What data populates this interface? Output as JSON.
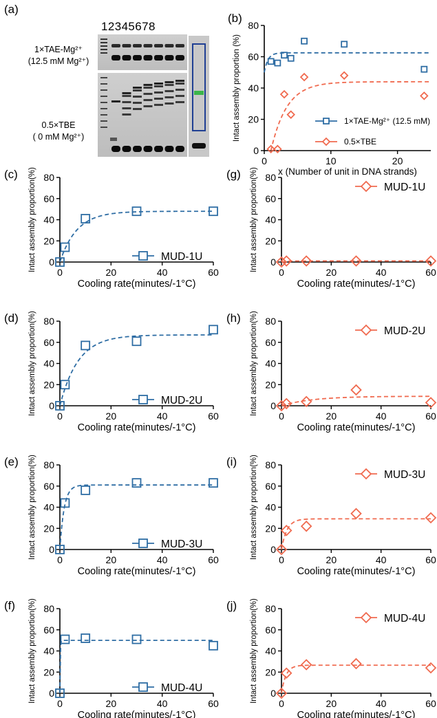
{
  "gel": {
    "panel_label": "(a)",
    "lane_numbers": "12345678",
    "top_label_line1": "1×TAE-Mg²⁺",
    "top_label_line2": "(12.5 mM Mg²⁺)",
    "bottom_label_line1": "0.5×TBE",
    "bottom_label_line2": "( 0 mM Mg²⁺)"
  },
  "colors": {
    "blue": "#2e6da4",
    "red": "#f06a4f",
    "gel_dark": "#0e0e0e",
    "gel_light": "#d9d9d9",
    "highlight_green": "#3bb54a",
    "highlight_box": "#1f3f93"
  },
  "chart_data": [
    {
      "id": "b",
      "panel_label": "(b)",
      "type": "scatter",
      "xlabel": "x (Number of unit in DNA strands)",
      "ylabel": "Intact assembly proportion (%)",
      "xlim": [
        0,
        25
      ],
      "ylim": [
        0,
        80
      ],
      "xticks": [
        0,
        10,
        20
      ],
      "yticks": [
        0,
        20,
        40,
        60,
        80
      ],
      "legend_position": "bottom-right",
      "series": [
        {
          "name": "1×TAE-Mg²⁺ (12.5 mM)",
          "marker": "square",
          "color": "#2e6da4",
          "x": [
            1,
            2,
            3,
            4,
            6,
            12,
            24
          ],
          "y": [
            57,
            56,
            61,
            59,
            70,
            68,
            52
          ],
          "fit": {
            "type": "exponential",
            "a": 62.5,
            "k": 1.8,
            "y0": 50
          }
        },
        {
          "name": "0.5×TBE",
          "marker": "diamond",
          "color": "#f06a4f",
          "x": [
            1,
            2,
            3,
            4,
            6,
            12,
            24
          ],
          "y": [
            1,
            1,
            36,
            23,
            47,
            48,
            35
          ],
          "fit": {
            "type": "exponential",
            "a": 44,
            "k": 0.42,
            "x0": 1,
            "y0": 0
          }
        }
      ]
    },
    {
      "id": "c",
      "panel_label": "(c)",
      "type": "scatter",
      "xlabel": "Cooling rate(minutes/-1°C)",
      "ylabel": "Intact assembly proportion(%)",
      "xlim": [
        0,
        60
      ],
      "ylim": [
        0,
        80
      ],
      "xticks": [
        0,
        20,
        40,
        60
      ],
      "yticks": [
        0,
        20,
        40,
        60,
        80
      ],
      "legend_position": "bottom-right",
      "series": [
        {
          "name": "MUD-1U",
          "marker": "square",
          "color": "#2e6da4",
          "x": [
            0,
            2,
            10,
            30,
            60
          ],
          "y": [
            0,
            14,
            41,
            48,
            48
          ],
          "fit": {
            "type": "exponential",
            "a": 48,
            "k": 0.15,
            "y0": 0
          }
        }
      ]
    },
    {
      "id": "d",
      "panel_label": "(d)",
      "type": "scatter",
      "xlabel": "Cooling rate(minutes/-1°C)",
      "ylabel": "Intact assembly proportion(%)",
      "xlim": [
        0,
        60
      ],
      "ylim": [
        0,
        80
      ],
      "xticks": [
        0,
        20,
        40,
        60
      ],
      "yticks": [
        0,
        20,
        40,
        60,
        80
      ],
      "legend_position": "bottom-right",
      "series": [
        {
          "name": "MUD-2U",
          "marker": "square",
          "color": "#2e6da4",
          "x": [
            0,
            2,
            10,
            30,
            60
          ],
          "y": [
            0,
            20,
            57,
            61,
            72
          ],
          "fit": {
            "type": "exponential",
            "a": 67,
            "k": 0.14,
            "y0": 0
          }
        }
      ]
    },
    {
      "id": "e",
      "panel_label": "(e)",
      "type": "scatter",
      "xlabel": "Cooling rate(minutes/-1°C)",
      "ylabel": "Intact assembly proportion(%)",
      "xlim": [
        0,
        60
      ],
      "ylim": [
        0,
        80
      ],
      "xticks": [
        0,
        20,
        40,
        60
      ],
      "yticks": [
        0,
        20,
        40,
        60,
        80
      ],
      "legend_position": "bottom-right",
      "series": [
        {
          "name": "MUD-3U",
          "marker": "square",
          "color": "#2e6da4",
          "x": [
            0,
            2,
            10,
            30,
            60
          ],
          "y": [
            0,
            44,
            56,
            63,
            63
          ],
          "fit": {
            "type": "exponential",
            "a": 61,
            "k": 0.6,
            "y0": 0
          }
        }
      ]
    },
    {
      "id": "f",
      "panel_label": "(f)",
      "type": "scatter",
      "xlabel": "Cooling rate(minutes/-1°C)",
      "ylabel": "Intact assembly proportion(%)",
      "xlim": [
        0,
        60
      ],
      "ylim": [
        0,
        80
      ],
      "xticks": [
        0,
        20,
        40,
        60
      ],
      "yticks": [
        0,
        20,
        40,
        60,
        80
      ],
      "legend_position": "bottom-right",
      "series": [
        {
          "name": "MUD-4U",
          "marker": "square",
          "color": "#2e6da4",
          "x": [
            0,
            2,
            10,
            30,
            60
          ],
          "y": [
            0,
            51,
            52,
            51,
            45
          ],
          "fit": {
            "type": "exponential",
            "a": 50,
            "k": 8,
            "y0": 0
          }
        }
      ]
    },
    {
      "id": "g",
      "panel_label": "(g)",
      "type": "scatter",
      "xlabel": "Cooling rate(minutes/-1°C)",
      "ylabel": "Intact assembly proportion(%)",
      "xlim": [
        0,
        60
      ],
      "ylim": [
        0,
        80
      ],
      "xticks": [
        0,
        20,
        40,
        60
      ],
      "yticks": [
        0,
        20,
        40,
        60,
        80
      ],
      "legend_position": "top-right",
      "series": [
        {
          "name": "MUD-1U",
          "marker": "diamond",
          "color": "#f06a4f",
          "x": [
            0,
            2,
            10,
            30,
            60
          ],
          "y": [
            0,
            1,
            1,
            1,
            1
          ],
          "fit": {
            "type": "exponential",
            "a": 1,
            "k": 0.5,
            "y0": 0
          }
        }
      ]
    },
    {
      "id": "h",
      "panel_label": "(h)",
      "type": "scatter",
      "xlabel": "Cooling rate(minutes/-1°C)",
      "ylabel": "Intact assembly proportion(%)",
      "xlim": [
        0,
        60
      ],
      "ylim": [
        0,
        80
      ],
      "xticks": [
        0,
        20,
        40,
        60
      ],
      "yticks": [
        0,
        20,
        40,
        60,
        80
      ],
      "legend_position": "top-right",
      "series": [
        {
          "name": "MUD-2U",
          "marker": "diamond",
          "color": "#f06a4f",
          "x": [
            0,
            2,
            10,
            30,
            60
          ],
          "y": [
            0,
            2,
            4,
            15,
            3
          ],
          "fit": {
            "type": "exponential",
            "a": 9,
            "k": 0.08,
            "y0": 0
          }
        }
      ]
    },
    {
      "id": "i",
      "panel_label": "(i)",
      "type": "scatter",
      "xlabel": "Cooling rate(minutes/-1°C)",
      "ylabel": "Intact assembly proportion(%)",
      "xlim": [
        0,
        60
      ],
      "ylim": [
        0,
        80
      ],
      "xticks": [
        0,
        20,
        40,
        60
      ],
      "yticks": [
        0,
        20,
        40,
        60,
        80
      ],
      "legend_position": "top-right",
      "series": [
        {
          "name": "MUD-3U",
          "marker": "diamond",
          "color": "#f06a4f",
          "x": [
            0,
            2,
            10,
            30,
            60
          ],
          "y": [
            0,
            18,
            22,
            34,
            30
          ],
          "fit": {
            "type": "exponential",
            "a": 29,
            "k": 0.45,
            "y0": 0
          }
        }
      ]
    },
    {
      "id": "j",
      "panel_label": "(j)",
      "type": "scatter",
      "xlabel": "Cooling rate(minutes/-1°C)",
      "ylabel": "Intact assembly proportion(%)",
      "xlim": [
        0,
        60
      ],
      "ylim": [
        0,
        80
      ],
      "xticks": [
        0,
        20,
        40,
        60
      ],
      "yticks": [
        0,
        20,
        40,
        60,
        80
      ],
      "legend_position": "top-right",
      "series": [
        {
          "name": "MUD-4U",
          "marker": "diamond",
          "color": "#f06a4f",
          "x": [
            0,
            2,
            10,
            30,
            60
          ],
          "y": [
            0,
            19,
            27,
            28,
            24
          ],
          "fit": {
            "type": "exponential",
            "a": 26.5,
            "k": 0.55,
            "y0": 0
          }
        }
      ]
    }
  ]
}
